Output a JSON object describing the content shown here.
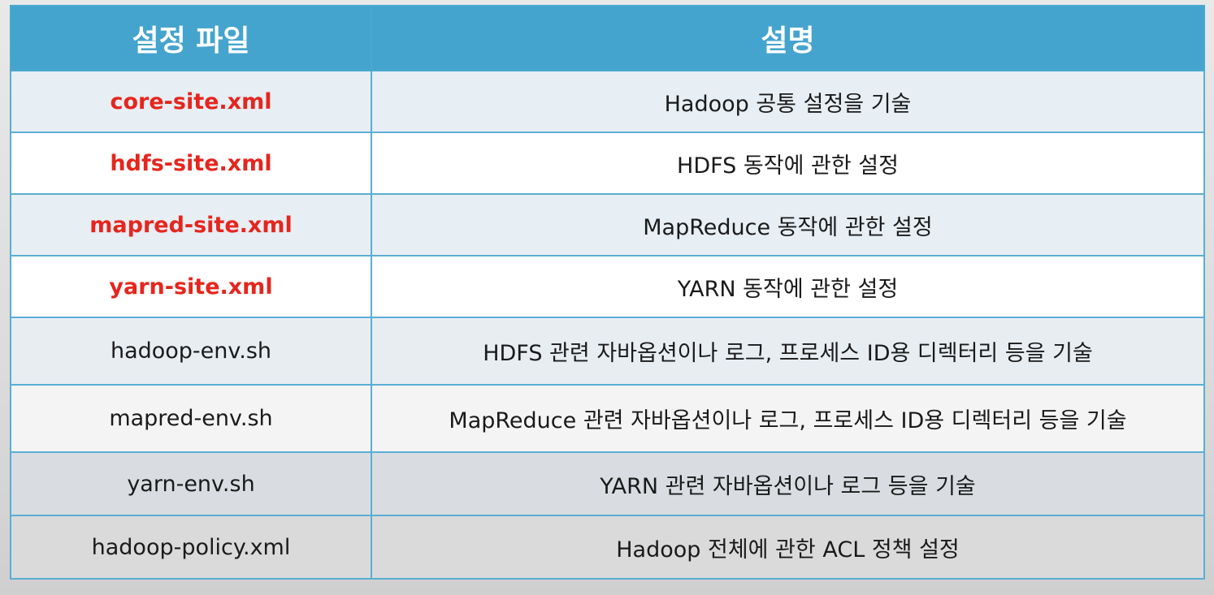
{
  "table": {
    "headers": [
      "설정 파일",
      "설명"
    ],
    "rows": [
      {
        "file": "core-site.xml",
        "description": "Hadoop 공통 설정을 기술",
        "highlight": true
      },
      {
        "file": "hdfs-site.xml",
        "description": "HDFS 동작에 관한 설정",
        "highlight": true
      },
      {
        "file": "mapred-site.xml",
        "description": "MapReduce 동작에 관한 설정",
        "highlight": true
      },
      {
        "file": "yarn-site.xml",
        "description": "YARN 동작에 관한 설정",
        "highlight": true
      },
      {
        "file": "hadoop-env.sh",
        "description": "HDFS 관련 자바옵션이나 로그, 프로세스 ID용 디렉터리 등을 기술",
        "highlight": false
      },
      {
        "file": "mapred-env.sh",
        "description": "MapReduce 관련 자바옵션이나 로그, 프로세스 ID용 디렉터리 등을 기술",
        "highlight": false
      },
      {
        "file": "yarn-env.sh",
        "description": "YARN 관련 자바옵션이나 로그 등을 기술",
        "highlight": false
      },
      {
        "file": "hadoop-policy.xml",
        "description": "Hadoop 전체에 관한 ACL 정책 설정",
        "highlight": false
      }
    ]
  },
  "colors": {
    "header_bg": "#45a4cd",
    "highlight_text": "#e5261e",
    "border": "#5aaed3"
  }
}
